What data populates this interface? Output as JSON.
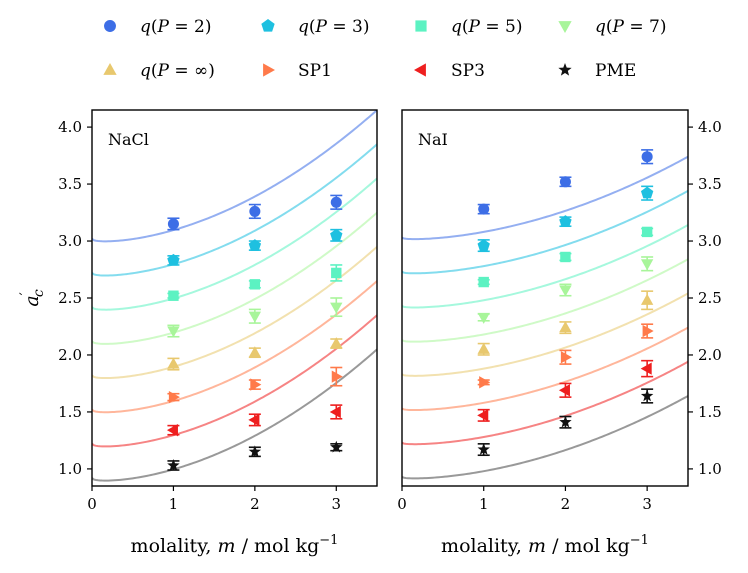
{
  "legend": [
    {
      "label": "q(P = 2)",
      "marker": "circle",
      "color": "#3d6ee6"
    },
    {
      "label": "q(P = 3)",
      "marker": "pentagon",
      "color": "#1ec0e0"
    },
    {
      "label": "q(P = 5)",
      "marker": "square",
      "color": "#5cf2c2"
    },
    {
      "label": "q(P = 7)",
      "marker": "triangle-down",
      "color": "#a8f59a"
    },
    {
      "label": "q(P = ∞)",
      "marker": "triangle-up",
      "color": "#e8c86e"
    },
    {
      "label": "SP1",
      "marker": "triangle-right",
      "color": "#ff7a4a"
    },
    {
      "label": "SP3",
      "marker": "triangle-left",
      "color": "#ee1f1f"
    },
    {
      "label": "PME",
      "marker": "star",
      "color": "#111111"
    }
  ],
  "chart_data": [
    {
      "type": "scatter",
      "title": "NaCl",
      "xlabel": "molality, m / mol kg⁻¹",
      "ylabel": "a′c",
      "xlim": [
        0,
        3.5
      ],
      "ylim": [
        0.85,
        4.15
      ],
      "xticks": [
        0,
        1,
        2,
        3
      ],
      "yticks": [
        1.0,
        1.5,
        2.0,
        2.5,
        3.0,
        3.5,
        4.0
      ],
      "ytick_side": "left",
      "x": [
        1,
        2,
        3
      ],
      "series": [
        {
          "name": "q(P = 2)",
          "values": [
            3.15,
            3.26,
            3.34
          ],
          "errors": [
            0.05,
            0.06,
            0.06
          ],
          "curve_offset": 2.1
        },
        {
          "name": "q(P = 3)",
          "values": [
            2.83,
            2.96,
            3.05
          ],
          "errors": [
            0.04,
            0.04,
            0.05
          ],
          "curve_offset": 1.8
        },
        {
          "name": "q(P = 5)",
          "values": [
            2.52,
            2.62,
            2.72
          ],
          "errors": [
            0.02,
            0.03,
            0.07
          ],
          "curve_offset": 1.5
        },
        {
          "name": "q(P = 7)",
          "values": [
            2.21,
            2.34,
            2.42
          ],
          "errors": [
            0.05,
            0.06,
            0.08
          ],
          "curve_offset": 1.2
        },
        {
          "name": "q(P = ∞)",
          "values": [
            1.92,
            2.02,
            2.1
          ],
          "errors": [
            0.05,
            0.04,
            0.04
          ],
          "curve_offset": 0.9
        },
        {
          "name": "SP1",
          "values": [
            1.63,
            1.74,
            1.81
          ],
          "errors": [
            0.03,
            0.04,
            0.08
          ],
          "curve_offset": 0.6
        },
        {
          "name": "SP3",
          "values": [
            1.34,
            1.43,
            1.5
          ],
          "errors": [
            0.04,
            0.05,
            0.06
          ],
          "curve_offset": 0.3
        },
        {
          "name": "PME",
          "values": [
            1.03,
            1.15,
            1.19
          ],
          "errors": [
            0.04,
            0.04,
            0.03
          ],
          "curve_offset": 0.0
        }
      ],
      "model_curve": {
        "a": 0.92,
        "b": -0.1,
        "c": 0.16
      }
    },
    {
      "type": "scatter",
      "title": "NaI",
      "xlabel": "molality, m / mol kg⁻¹",
      "ylabel": "",
      "xlim": [
        0,
        3.5
      ],
      "ylim": [
        0.85,
        4.15
      ],
      "xticks": [
        0,
        1,
        2,
        3
      ],
      "yticks": [
        1.0,
        1.5,
        2.0,
        2.5,
        3.0,
        3.5,
        4.0
      ],
      "ytick_side": "right",
      "x": [
        1,
        2,
        3
      ],
      "series": [
        {
          "name": "q(P = 2)",
          "values": [
            3.28,
            3.52,
            3.74
          ],
          "errors": [
            0.04,
            0.04,
            0.06
          ],
          "curve_offset": 2.1
        },
        {
          "name": "q(P = 3)",
          "values": [
            2.96,
            3.17,
            3.42
          ],
          "errors": [
            0.05,
            0.04,
            0.06
          ],
          "curve_offset": 1.8
        },
        {
          "name": "q(P = 5)",
          "values": [
            2.64,
            2.86,
            3.08
          ],
          "errors": [
            0.02,
            0.03,
            0.03
          ],
          "curve_offset": 1.5
        },
        {
          "name": "q(P = 7)",
          "values": [
            2.33,
            2.57,
            2.8
          ],
          "errors": [
            0.03,
            0.05,
            0.06
          ],
          "curve_offset": 1.2
        },
        {
          "name": "q(P = ∞)",
          "values": [
            2.05,
            2.24,
            2.48
          ],
          "errors": [
            0.05,
            0.05,
            0.08
          ],
          "curve_offset": 0.9
        },
        {
          "name": "SP1",
          "values": [
            1.76,
            1.98,
            2.21
          ],
          "errors": [
            0.02,
            0.06,
            0.06
          ],
          "curve_offset": 0.6
        },
        {
          "name": "SP3",
          "values": [
            1.47,
            1.69,
            1.88
          ],
          "errors": [
            0.05,
            0.06,
            0.07
          ],
          "curve_offset": 0.3
        },
        {
          "name": "PME",
          "values": [
            1.17,
            1.41,
            1.64
          ],
          "errors": [
            0.05,
            0.05,
            0.06
          ],
          "curve_offset": 0.0
        }
      ],
      "model_curve": {
        "a": 0.93,
        "b": -0.06,
        "c": 0.1
      }
    }
  ]
}
